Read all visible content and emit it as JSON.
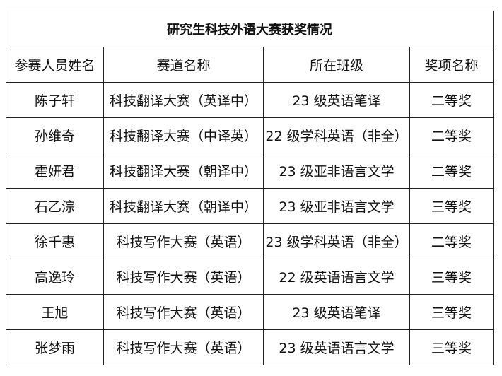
{
  "title": "研究生科技外语大赛获奖情况",
  "headers": [
    "参赛人员姓名",
    "赛道名称",
    "所在班级",
    "奖项名称"
  ],
  "rows": [
    [
      "陈子轩",
      "科技翻译大赛（英译中）",
      "23 级英语笔译",
      "二等奖"
    ],
    [
      "孙维奇",
      "科技翻译大赛（中译英）",
      "22 级学科英语（非全）",
      "二等奖"
    ],
    [
      "霍妍君",
      "科技翻译大赛（朝译中）",
      "23 级亚非语言文学",
      "二等奖"
    ],
    [
      "石乙淙",
      "科技翻译大赛（朝译中）",
      "23 级亚非语言文学",
      "三等奖"
    ],
    [
      "徐千惠",
      "科技写作大赛（英语）",
      "23 级学科英语（非全）",
      "二等奖"
    ],
    [
      "高逸玲",
      "科技写作大赛（英语）",
      "22 级英语语言文学",
      "三等奖"
    ],
    [
      "王旭",
      "科技写作大赛（英语）",
      "23 级英语笔译",
      "三等奖"
    ],
    [
      "张梦雨",
      "科技写作大赛（英语）",
      "23 级英语语言文学",
      "三等奖"
    ]
  ]
}
